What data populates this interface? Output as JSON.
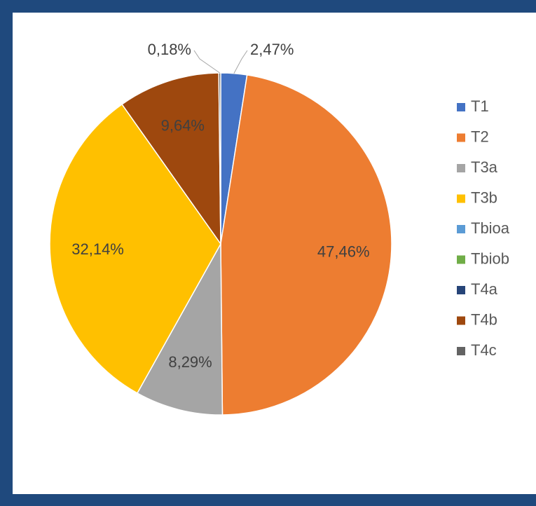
{
  "chart_data": {
    "type": "pie",
    "categories": [
      "T1",
      "T2",
      "T3a",
      "T3b",
      "Tbioa",
      "Tbiob",
      "T4a",
      "T4b",
      "T4c"
    ],
    "values": [
      2.47,
      47.46,
      8.29,
      32.14,
      0,
      0,
      0,
      9.64,
      0.18
    ],
    "value_labels": [
      "2,47%",
      "47,46%",
      "8,29%",
      "32,14%",
      null,
      null,
      null,
      "9,64%",
      "0,18%"
    ],
    "colors": [
      "#4472c4",
      "#ed7d31",
      "#a5a5a5",
      "#ffc000",
      "#5b9bd5",
      "#70ad47",
      "#264478",
      "#9e480e",
      "#636363"
    ],
    "legend": "right"
  }
}
